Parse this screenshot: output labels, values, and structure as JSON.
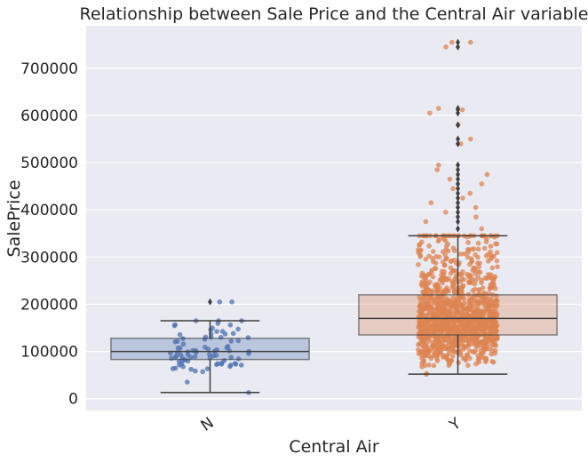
{
  "chart_data": {
    "type": "box",
    "title": "Relationship between Sale Price and the Central Air variable",
    "xlabel": "Central Air",
    "ylabel": "SalePrice",
    "categories": [
      "N",
      "Y"
    ],
    "ylim": [
      -25000,
      790000
    ],
    "yticks": [
      0,
      100000,
      200000,
      300000,
      400000,
      500000,
      600000,
      700000
    ],
    "ytick_labels": [
      "0",
      "100000",
      "200000",
      "300000",
      "400000",
      "500000",
      "600000",
      "700000"
    ],
    "grid": true,
    "boxes": [
      {
        "category": "N",
        "color": "#4c72b0",
        "whisker_low": 13000,
        "q1": 83000,
        "median": 100000,
        "q3": 128000,
        "whisker_high": 165000,
        "outliers": [
          205000
        ]
      },
      {
        "category": "Y",
        "color": "#dd8452",
        "whisker_low": 52000,
        "q1": 135000,
        "median": 170000,
        "q3": 220000,
        "whisker_high": 345000,
        "outliers": [
          360000,
          375000,
          385000,
          395000,
          405000,
          415000,
          425000,
          435000,
          445000,
          455000,
          465000,
          475000,
          485000,
          495000,
          540000,
          550000,
          580000,
          605000,
          612000,
          615000,
          745000,
          755000
        ]
      }
    ],
    "points": [
      {
        "category": "N",
        "count": 82,
        "range": [
          13000,
          205000
        ]
      },
      {
        "category": "Y",
        "count": 1200,
        "range": [
          52000,
          755000
        ]
      }
    ]
  }
}
